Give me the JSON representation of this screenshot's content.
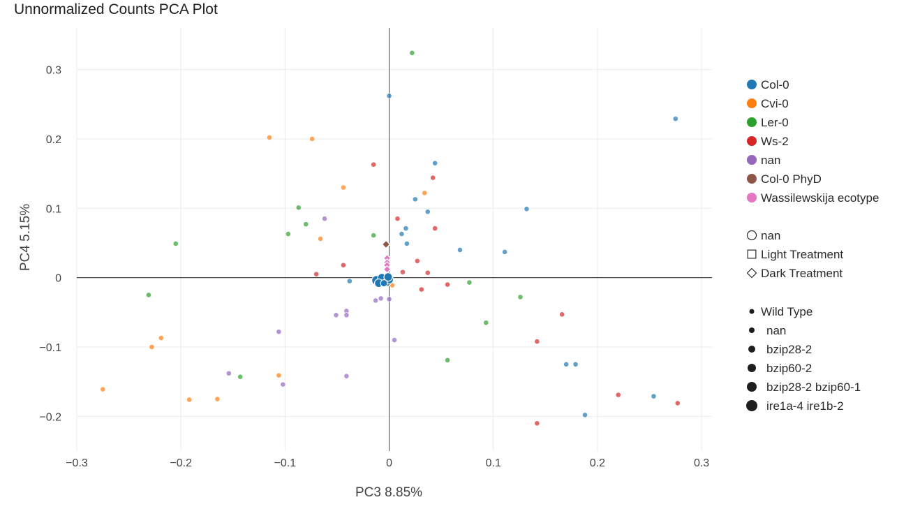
{
  "chart_data": {
    "type": "scatter",
    "title": "Unnormalized Counts PCA Plot",
    "xlabel": "PC3 8.85%",
    "ylabel": "PC4 5.15%",
    "xlim": [
      -0.3,
      0.31
    ],
    "ylim": [
      -0.25,
      0.36
    ],
    "xticks": [
      -0.3,
      -0.2,
      -0.1,
      0,
      0.1,
      0.2,
      0.3
    ],
    "xtick_labels": [
      "−0.3",
      "−0.2",
      "−0.1",
      "0",
      "0.1",
      "0.2",
      "0.3"
    ],
    "yticks": [
      -0.2,
      -0.1,
      0,
      0.1,
      0.2,
      0.3
    ],
    "ytick_labels": [
      "−0.2",
      "−0.1",
      "0",
      "0.1",
      "0.2",
      "0.3"
    ],
    "grid": true,
    "legend_position": "right",
    "color_legend": [
      {
        "name": "Col-0",
        "color": "#1f77b4"
      },
      {
        "name": "Cvi-0",
        "color": "#ff7f0e"
      },
      {
        "name": "Ler-0",
        "color": "#2ca02c"
      },
      {
        "name": "Ws-2",
        "color": "#d62728"
      },
      {
        "name": "nan",
        "color": "#9467bd"
      },
      {
        "name": "Col-0 PhyD",
        "color": "#8c564b"
      },
      {
        "name": "Wassilewskija ecotype",
        "color": "#e377c2"
      }
    ],
    "symbol_legend": [
      {
        "name": "nan",
        "symbol": "circle"
      },
      {
        "name": "Light Treatment",
        "symbol": "square"
      },
      {
        "name": "Dark Treatment",
        "symbol": "diamond"
      }
    ],
    "size_legend": [
      {
        "name": "Wild Type",
        "size": 7
      },
      {
        "name": "nan",
        "size": 8
      },
      {
        "name": "bzip28-2",
        "size": 10
      },
      {
        "name": "bzip60-2",
        "size": 12
      },
      {
        "name": "bzip28-2 bzip60-1",
        "size": 14
      },
      {
        "name": "ire1a-4 ire1b-2",
        "size": 16
      }
    ],
    "series": [
      {
        "color": "#1f77b4",
        "points": [
          [
            0.0,
            0.262
          ],
          [
            0.275,
            0.229
          ],
          [
            0.044,
            0.165
          ],
          [
            0.025,
            0.113
          ],
          [
            0.037,
            0.095
          ],
          [
            0.132,
            0.099
          ],
          [
            0.016,
            0.071
          ],
          [
            0.012,
            0.063
          ],
          [
            0.017,
            0.049
          ],
          [
            0.068,
            0.04
          ],
          [
            0.111,
            0.037
          ],
          [
            -0.038,
            -0.005
          ],
          [
            0.17,
            -0.125
          ],
          [
            0.179,
            -0.125
          ],
          [
            0.254,
            -0.171
          ],
          [
            0.188,
            -0.198
          ]
        ]
      },
      {
        "color": "#ff7f0e",
        "points": [
          [
            -0.115,
            0.202
          ],
          [
            -0.074,
            0.2
          ],
          [
            -0.044,
            0.13
          ],
          [
            0.034,
            0.122
          ],
          [
            -0.066,
            0.056
          ],
          [
            0.003,
            -0.011
          ],
          [
            -0.219,
            -0.087
          ],
          [
            -0.228,
            -0.1
          ],
          [
            -0.106,
            -0.141
          ],
          [
            -0.275,
            -0.161
          ],
          [
            -0.192,
            -0.176
          ],
          [
            -0.165,
            -0.175
          ]
        ]
      },
      {
        "color": "#2ca02c",
        "points": [
          [
            0.022,
            0.324
          ],
          [
            -0.087,
            0.101
          ],
          [
            -0.08,
            0.077
          ],
          [
            -0.097,
            0.063
          ],
          [
            -0.205,
            0.049
          ],
          [
            -0.015,
            0.061
          ],
          [
            0.077,
            -0.007
          ],
          [
            0.126,
            -0.028
          ],
          [
            -0.231,
            -0.025
          ],
          [
            0.093,
            -0.065
          ],
          [
            0.056,
            -0.119
          ],
          [
            -0.143,
            -0.143
          ]
        ]
      },
      {
        "color": "#d62728",
        "points": [
          [
            -0.015,
            0.163
          ],
          [
            0.042,
            0.144
          ],
          [
            0.008,
            0.085
          ],
          [
            0.044,
            0.071
          ],
          [
            0.027,
            0.024
          ],
          [
            -0.044,
            0.018
          ],
          [
            0.013,
            0.008
          ],
          [
            0.037,
            0.007
          ],
          [
            -0.07,
            0.005
          ],
          [
            0.056,
            -0.01
          ],
          [
            0.031,
            -0.017
          ],
          [
            0.166,
            -0.053
          ],
          [
            0.142,
            -0.092
          ],
          [
            0.22,
            -0.169
          ],
          [
            0.277,
            -0.181
          ],
          [
            0.142,
            -0.21
          ]
        ]
      },
      {
        "color": "#9467bd",
        "points": [
          [
            -0.062,
            0.085
          ],
          [
            -0.041,
            -0.048
          ],
          [
            -0.051,
            -0.054
          ],
          [
            -0.041,
            -0.054
          ],
          [
            -0.008,
            -0.03
          ],
          [
            0.0,
            -0.031
          ],
          [
            -0.013,
            -0.033
          ],
          [
            -0.106,
            -0.078
          ],
          [
            0.005,
            -0.09
          ],
          [
            -0.154,
            -0.138
          ],
          [
            -0.102,
            -0.154
          ],
          [
            -0.041,
            -0.142
          ]
        ]
      }
    ],
    "cluster_points": [
      {
        "color": "#1f77b4",
        "symbol": "circle",
        "size": 16,
        "x": -0.009,
        "y": -0.006
      },
      {
        "color": "#1f77b4",
        "symbol": "circle",
        "size": 16,
        "x": -0.004,
        "y": -0.003
      },
      {
        "color": "#1f77b4",
        "symbol": "circle",
        "size": 14,
        "x": -0.006,
        "y": -0.004
      },
      {
        "color": "#1f77b4",
        "symbol": "circle",
        "size": 14,
        "x": -0.012,
        "y": -0.004
      },
      {
        "color": "#1f77b4",
        "symbol": "circle",
        "size": 14,
        "x": -0.003,
        "y": -0.006
      },
      {
        "color": "#1f77b4",
        "symbol": "circle",
        "size": 12,
        "x": -0.007,
        "y": 0.0
      },
      {
        "color": "#1f77b4",
        "symbol": "circle",
        "size": 12,
        "x": 0.0,
        "y": -0.003
      },
      {
        "color": "#1f77b4",
        "symbol": "circle",
        "size": 12,
        "x": -0.001,
        "y": 0.001
      },
      {
        "color": "#1f77b4",
        "symbol": "circle",
        "size": 12,
        "x": -0.01,
        "y": -0.008
      },
      {
        "color": "#1f77b4",
        "symbol": "circle",
        "size": 10,
        "x": -0.005,
        "y": -0.008
      },
      {
        "color": "#e377c2",
        "symbol": "diamond",
        "size": 10,
        "x": -0.002,
        "y": 0.028
      },
      {
        "color": "#e377c2",
        "symbol": "diamond",
        "size": 10,
        "x": -0.002,
        "y": 0.022
      },
      {
        "color": "#e377c2",
        "symbol": "diamond",
        "size": 10,
        "x": -0.002,
        "y": 0.018
      },
      {
        "color": "#e377c2",
        "symbol": "diamond",
        "size": 10,
        "x": -0.002,
        "y": 0.012
      },
      {
        "color": "#8c564b",
        "symbol": "diamond",
        "size": 11,
        "x": -0.003,
        "y": 0.048
      }
    ]
  }
}
